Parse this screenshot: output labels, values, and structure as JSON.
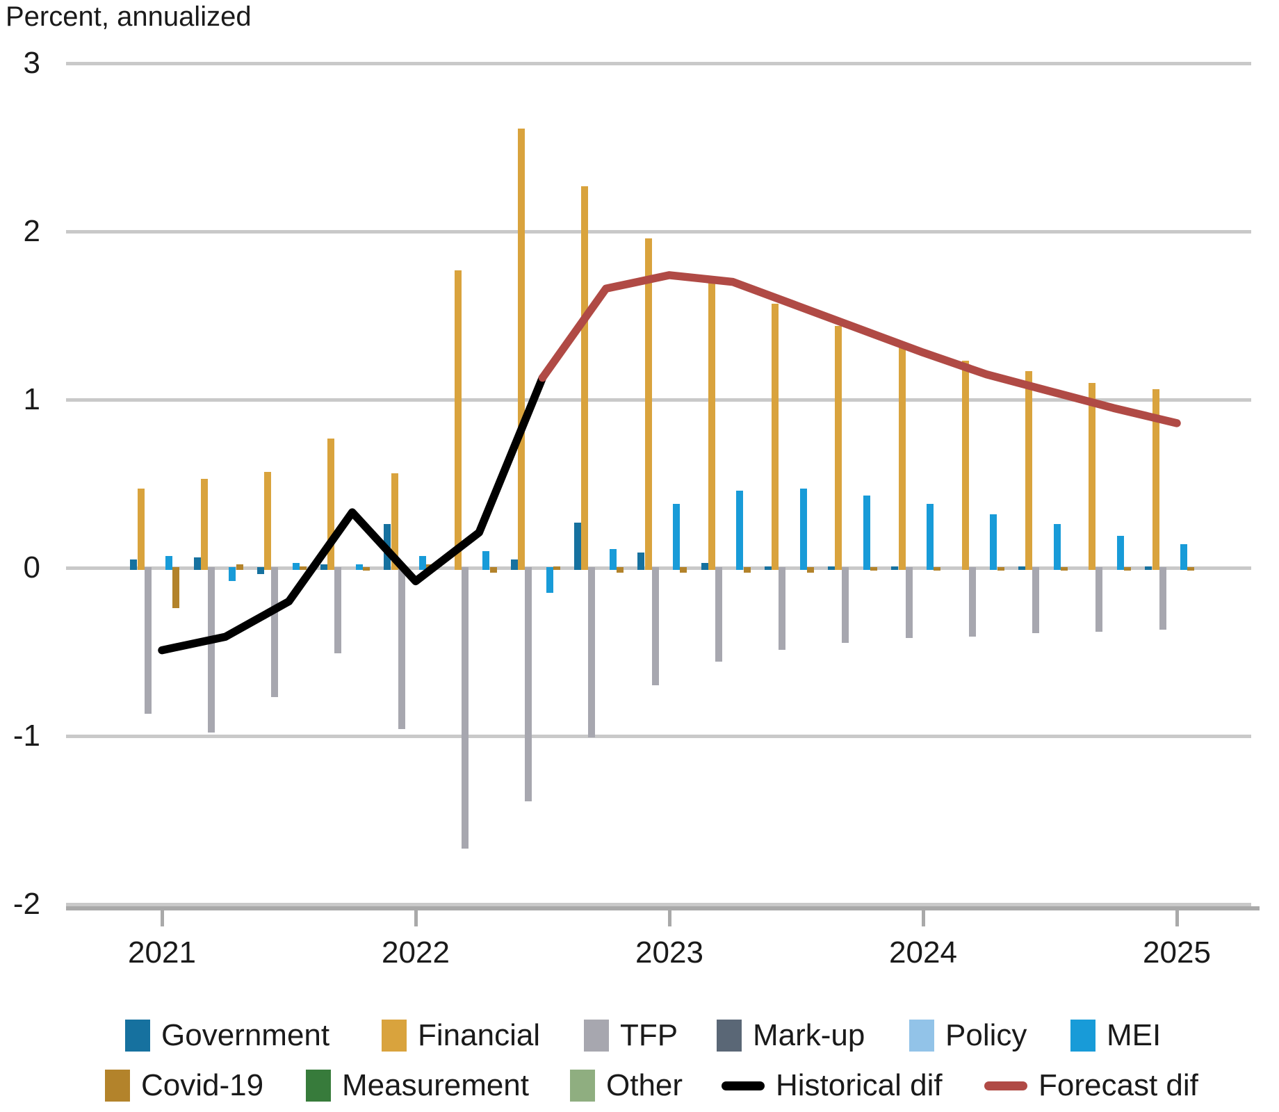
{
  "title": "Percent, annualized",
  "y_axis": {
    "ticks": [
      "3",
      "2",
      "1",
      "0",
      "-1",
      "-2"
    ]
  },
  "x_axis": {
    "years": [
      "2021",
      "2022",
      "2023",
      "2024",
      "2025"
    ]
  },
  "legend": {
    "items": [
      {
        "label": "Government",
        "key": "government",
        "type": "swatch"
      },
      {
        "label": "Financial",
        "key": "financial",
        "type": "swatch"
      },
      {
        "label": "TFP",
        "key": "tfp",
        "type": "swatch"
      },
      {
        "label": "Mark-up",
        "key": "markup",
        "type": "swatch"
      },
      {
        "label": "Policy",
        "key": "policy",
        "type": "swatch"
      },
      {
        "label": "MEI",
        "key": "mei",
        "type": "swatch"
      },
      {
        "label": "Covid-19",
        "key": "covid",
        "type": "swatch"
      },
      {
        "label": "Measurement",
        "key": "measurement",
        "type": "swatch"
      },
      {
        "label": "Other",
        "key": "other",
        "type": "swatch"
      },
      {
        "label": "Historical dif",
        "key": "historical",
        "type": "line"
      },
      {
        "label": "Forecast dif",
        "key": "forecast",
        "type": "line"
      }
    ]
  },
  "colors": {
    "government": "#16719F",
    "financial": "#D9A33D",
    "tfp": "#A7A7AF",
    "markup": "#5A6776",
    "policy": "#92C3E8",
    "mei": "#189BD8",
    "covid": "#B3832B",
    "measurement": "#377B3B",
    "other": "#8FAE80",
    "historical": "#000000",
    "forecast": "#B04A45",
    "gridline": "#C9C9C9",
    "axis": "#A9A9A9",
    "text": "#1A1A1A"
  },
  "chart_data": {
    "type": "bar",
    "title": "Percent, annualized",
    "ylabel": "Percent, annualized",
    "ylim": [
      -2,
      3
    ],
    "grid": "on",
    "legend_position": "bottom",
    "quarters": [
      "2021Q1",
      "2021Q2",
      "2021Q3",
      "2021Q4",
      "2022Q1",
      "2022Q2",
      "2022Q3",
      "2022Q4",
      "2023Q1",
      "2023Q2",
      "2023Q3",
      "2023Q4",
      "2024Q1",
      "2024Q2",
      "2024Q3",
      "2024Q4",
      "2025Q1"
    ],
    "series": [
      {
        "name": "Government",
        "key": "government",
        "values": [
          0.05,
          0.06,
          -0.03,
          0.02,
          0.26,
          0.0,
          0.05,
          0.27,
          0.09,
          0.03,
          0.01,
          0.01,
          0.01,
          0.0,
          0.01,
          0.0,
          0.01
        ]
      },
      {
        "name": "Financial",
        "key": "financial",
        "values": [
          0.47,
          0.53,
          0.57,
          0.77,
          0.56,
          1.77,
          2.61,
          2.27,
          1.96,
          1.73,
          1.57,
          1.44,
          1.32,
          1.23,
          1.17,
          1.1,
          1.06
        ]
      },
      {
        "name": "TFP",
        "key": "tfp",
        "values": [
          -0.86,
          -0.97,
          -0.76,
          -0.5,
          -0.95,
          -1.66,
          -1.38,
          -1.0,
          -0.69,
          -0.55,
          -0.48,
          -0.44,
          -0.41,
          -0.4,
          -0.38,
          -0.37,
          -0.36
        ]
      },
      {
        "name": "Mark-up",
        "key": "markup",
        "values": [
          0,
          0,
          0,
          0,
          0,
          0,
          0,
          0,
          0,
          0,
          0,
          0,
          0,
          0,
          0,
          0,
          0
        ]
      },
      {
        "name": "Policy",
        "key": "policy",
        "values": [
          0,
          0,
          0,
          0,
          0,
          0,
          0,
          0,
          0,
          0,
          0,
          0,
          0,
          0,
          0,
          0,
          0
        ]
      },
      {
        "name": "MEI",
        "key": "mei",
        "values": [
          0.07,
          -0.07,
          0.03,
          0.02,
          0.07,
          0.1,
          -0.14,
          0.11,
          0.38,
          0.46,
          0.47,
          0.43,
          0.38,
          0.32,
          0.26,
          0.19,
          0.14
        ]
      },
      {
        "name": "Covid-19",
        "key": "covid",
        "values": [
          -0.23,
          0.02,
          0.01,
          -0.01,
          0.02,
          -0.02,
          0.01,
          -0.02,
          -0.02,
          -0.02,
          -0.02,
          -0.01,
          -0.01,
          -0.01,
          -0.01,
          -0.01,
          -0.01
        ]
      },
      {
        "name": "Measurement",
        "key": "measurement",
        "values": [
          0,
          0,
          0,
          0,
          0,
          0,
          0,
          0,
          0,
          0,
          0,
          0,
          0,
          0,
          0,
          0,
          0
        ]
      },
      {
        "name": "Other",
        "key": "other",
        "values": [
          0,
          0,
          0,
          0,
          0,
          0,
          0,
          0,
          0,
          0,
          0,
          0,
          0,
          0,
          0,
          0,
          0
        ]
      }
    ],
    "lines": [
      {
        "name": "Historical dif",
        "key": "historical",
        "start_quarter_index": 0,
        "values": [
          -0.49,
          -0.41,
          -0.2,
          0.33,
          -0.08,
          0.21,
          1.13
        ]
      },
      {
        "name": "Forecast dif",
        "key": "forecast",
        "start_quarter_index": 6,
        "values": [
          1.13,
          1.66,
          1.74,
          1.7,
          1.56,
          1.42,
          1.28,
          1.15,
          1.05,
          0.95,
          0.86
        ]
      }
    ]
  }
}
